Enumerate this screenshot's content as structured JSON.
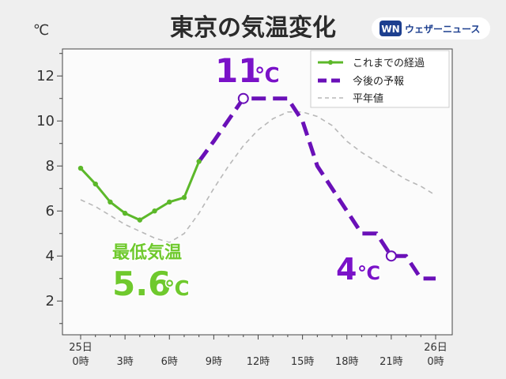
{
  "header": {
    "title": "東京の気温変化",
    "unit": "℃",
    "brand": "ウェザーニュース",
    "brand_logo_text": "WN"
  },
  "annotations": {
    "max_value": "11",
    "max_unit": "℃",
    "min_label": "最低気温",
    "min_value": "5.6",
    "min_unit": "℃",
    "end_value": "4",
    "end_unit": "℃"
  },
  "colors": {
    "observed": "#5cb82a",
    "forecast": "#6a10b8",
    "normal": "#b8b8b8",
    "background": "#efefef",
    "plot_bg": "#fbfbfb"
  },
  "chart_data": {
    "type": "line",
    "ylim": [
      0.5,
      13.2
    ],
    "xlim": [
      0,
      24
    ],
    "y_ticks": [
      2,
      4,
      6,
      8,
      10,
      12
    ],
    "x_ticks": [
      {
        "x": 0,
        "line1": "25日",
        "line2": "0時"
      },
      {
        "x": 3,
        "line1": "",
        "line2": "3時"
      },
      {
        "x": 6,
        "line1": "",
        "line2": "6時"
      },
      {
        "x": 9,
        "line1": "",
        "line2": "9時"
      },
      {
        "x": 12,
        "line1": "",
        "line2": "12時"
      },
      {
        "x": 15,
        "line1": "",
        "line2": "15時"
      },
      {
        "x": 18,
        "line1": "",
        "line2": "18時"
      },
      {
        "x": 21,
        "line1": "",
        "line2": "21時"
      },
      {
        "x": 24,
        "line1": "26日",
        "line2": "0時"
      }
    ],
    "legend_position": "top-right",
    "series": [
      {
        "name": "これまでの経過",
        "style": "solid-markers",
        "x": [
          0,
          1,
          2,
          3,
          4,
          5,
          6,
          7,
          8
        ],
        "y": [
          7.9,
          7.2,
          6.4,
          5.9,
          5.6,
          6.0,
          6.4,
          6.6,
          8.2
        ]
      },
      {
        "name": "今後の予報",
        "style": "dashed-bold",
        "x": [
          8,
          9,
          11,
          12,
          14,
          15,
          16,
          18,
          19,
          20,
          21,
          22,
          23,
          24
        ],
        "y": [
          8.2,
          9.1,
          11.0,
          11.0,
          11.0,
          10.0,
          8.0,
          6.0,
          5.0,
          5.0,
          4.0,
          4.0,
          3.0,
          3.0
        ]
      },
      {
        "name": "平年値",
        "style": "dashed-thin",
        "x": [
          0,
          1,
          2,
          3,
          4,
          5,
          6,
          7,
          8,
          9,
          10,
          11,
          12,
          13,
          14,
          15,
          16,
          17,
          18,
          19,
          20,
          21,
          22,
          23,
          24
        ],
        "y": [
          6.5,
          6.2,
          5.8,
          5.4,
          5.1,
          4.8,
          4.6,
          5.0,
          5.9,
          7.0,
          8.0,
          8.9,
          9.6,
          10.1,
          10.4,
          10.4,
          10.2,
          9.8,
          9.1,
          8.6,
          8.2,
          7.8,
          7.4,
          7.1,
          6.7
        ]
      }
    ],
    "markers": [
      {
        "x": 11,
        "y": 11.0
      },
      {
        "x": 21,
        "y": 4.0
      }
    ]
  }
}
